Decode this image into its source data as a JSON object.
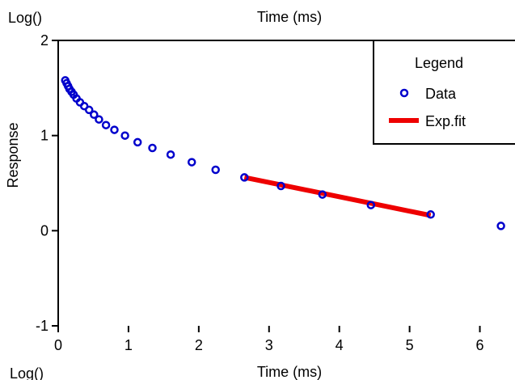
{
  "chart_data": {
    "type": "scatter",
    "title_top": "Time (ms)",
    "title_bottom": "Time (ms)",
    "corner_top_left": "Log()",
    "corner_bottom_left": "Log()",
    "ylabel": "Response",
    "xlim": [
      0,
      6.5
    ],
    "ylim": [
      -1,
      2
    ],
    "x_ticks": [
      0,
      1,
      2,
      3,
      4,
      5,
      6
    ],
    "y_ticks": [
      -1,
      0,
      1,
      2
    ],
    "grid": false,
    "legend": {
      "title": "Legend",
      "placement": "top-right",
      "entries": [
        "Data",
        "Exp.fit"
      ]
    },
    "series": [
      {
        "name": "Data",
        "style": "markers",
        "color": "#0000cc",
        "points": [
          [
            0.1,
            1.58
          ],
          [
            0.12,
            1.55
          ],
          [
            0.14,
            1.52
          ],
          [
            0.16,
            1.49
          ],
          [
            0.19,
            1.46
          ],
          [
            0.22,
            1.43
          ],
          [
            0.26,
            1.39
          ],
          [
            0.31,
            1.35
          ],
          [
            0.37,
            1.31
          ],
          [
            0.44,
            1.27
          ],
          [
            0.51,
            1.22
          ],
          [
            0.58,
            1.17
          ],
          [
            0.68,
            1.11
          ],
          [
            0.8,
            1.06
          ],
          [
            0.95,
            1.0
          ],
          [
            1.13,
            0.93
          ],
          [
            1.34,
            0.87
          ],
          [
            1.6,
            0.8
          ],
          [
            1.9,
            0.72
          ],
          [
            2.24,
            0.64
          ],
          [
            2.65,
            0.56
          ],
          [
            3.17,
            0.47
          ],
          [
            3.76,
            0.38
          ],
          [
            4.45,
            0.27
          ],
          [
            5.3,
            0.17
          ],
          [
            6.3,
            0.05
          ]
        ]
      },
      {
        "name": "Exp.fit",
        "style": "line",
        "color": "#ee0000",
        "points": [
          [
            2.65,
            0.56
          ],
          [
            5.3,
            0.16
          ]
        ]
      }
    ]
  }
}
